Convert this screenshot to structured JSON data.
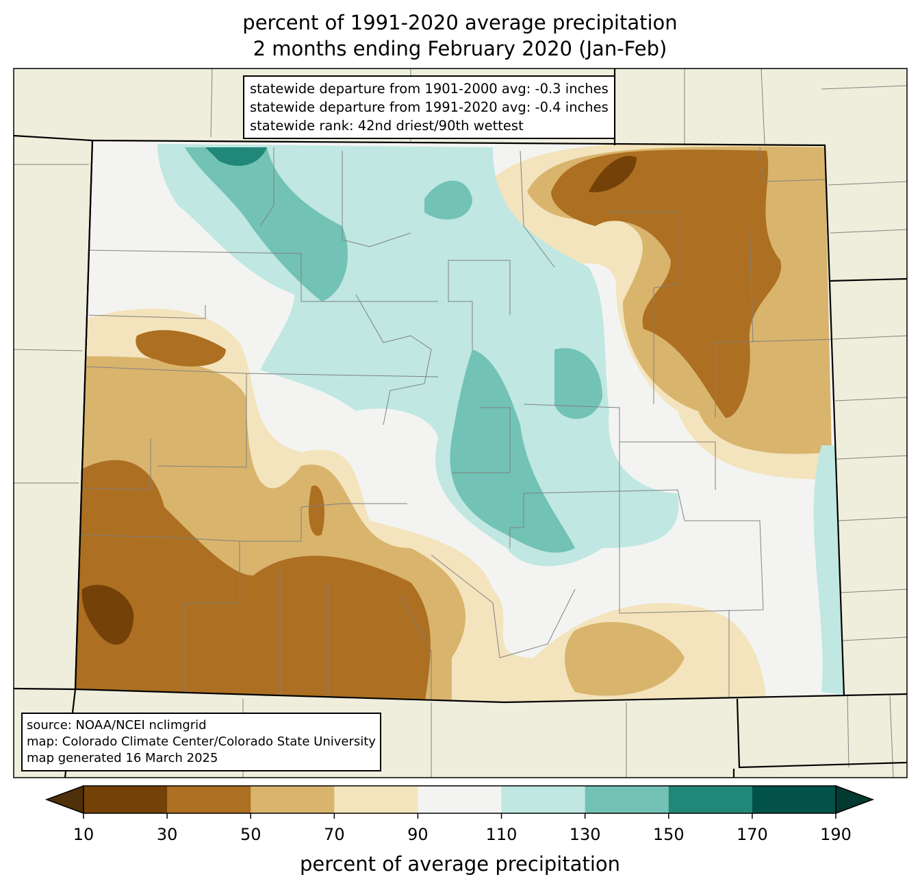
{
  "title": {
    "line1": "percent of 1991-2020 average precipitation",
    "line2": "2 months ending February 2020 (Jan-Feb)"
  },
  "stats": {
    "line1": "statewide departure from 1901-2000 avg: -0.3 inches",
    "line2": "statewide departure from 1991-2020 avg: -0.4 inches",
    "line3": "statewide rank: 42nd driest/90th wettest"
  },
  "source": {
    "line1": "source: NOAA/NCEI nclimgrid",
    "line2": "map: Colorado Climate Center/Colorado State University",
    "line3": "map generated 16 March 2025"
  },
  "colorbar": {
    "label": "percent of average precipitation",
    "ticks": [
      "10",
      "30",
      "50",
      "70",
      "90",
      "110",
      "130",
      "150",
      "170",
      "190"
    ],
    "colors": [
      "#744108",
      "#ad6f21",
      "#d9b46d",
      "#f3e4bd",
      "#f3f4f2",
      "#c0e7e2",
      "#72c2b5",
      "#218779",
      "#03524a"
    ],
    "extend_low": "#50300a",
    "extend_high": "#023a32"
  },
  "colors": {
    "land": "#efeedc",
    "county": "#808080",
    "border": "#000000"
  }
}
